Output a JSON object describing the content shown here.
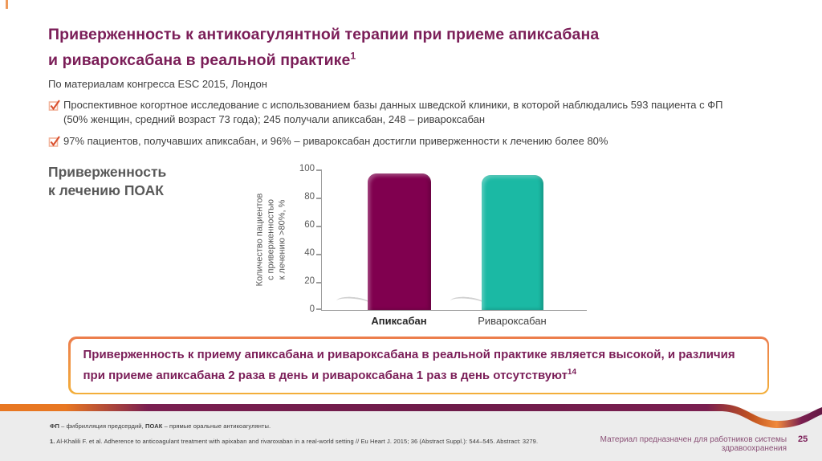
{
  "slide": {
    "title": {
      "regular1": "Приверженность к антикоагулянтной терапии при приеме ",
      "bold1": "апиксабана",
      "line2": "и ривароксабана в реальной практике",
      "sup": "1"
    },
    "subtitle": "По материалам конгресса ESC 2015, Лондон",
    "bullets": [
      {
        "text": "Проспективное когортное исследование с использованием базы данных шведской клиники, в которой наблюдались 593 пациента с ФП (50% женщин, средний возраст 73 года); 245 получали апиксабан, 248 – ривароксабан"
      },
      {
        "text": "97% пациентов, получавших апиксабан, и 96% – ривароксабан достигли приверженности к лечению более 80%"
      }
    ],
    "chart_label": {
      "line1": "Приверженность",
      "line2": "к лечению ПОАК"
    },
    "highlight_box": {
      "part1": "Приверженность к приему ",
      "bold1": "апиксабана",
      "part2": " и ривароксабана в реальной практике является высокой, и различия при приеме ",
      "bold2": "апиксабана",
      "part3": " 2 раза в день и ривароксабана 1 раз в день отсутствуют",
      "sup": "14"
    },
    "footnotes": {
      "abbr_bold1": "ФП",
      "abbr_text1": " – фибрилляция предсердий, ",
      "abbr_bold2": "ПОАК",
      "abbr_text2": " – прямые оральные антикоагулянты.",
      "ref_num": "1.",
      "ref_text": " Al-Khalili F. et al. Adherence to anticoagulant treatment with apixaban and rivaroxaban in a real-world setting // Eu Heart J. 2015; 36 (Abstract Suppl.): 544–545. Abstract: 3279."
    },
    "footer": {
      "disclaimer": "Материал предназначен для работников системы здравоохранения",
      "page_number": "25"
    }
  },
  "chart_data": {
    "type": "bar",
    "title": "Приверженность к лечению ПОАК",
    "categories": [
      "Апиксабан",
      "Ривароксабан"
    ],
    "values": [
      97,
      96
    ],
    "colors": [
      "#80004F",
      "#1BB9A4"
    ],
    "ylabel_lines": [
      "Количество пациентов",
      "с приверженностью",
      "к лечению >80%, %"
    ],
    "yticks": [
      100,
      80,
      60,
      40,
      20,
      0
    ],
    "ylim": [
      0,
      100
    ],
    "grid": false,
    "legend": "none"
  },
  "colors": {
    "brand_magenta": "#7B1E58",
    "accent_orange": "#E87722",
    "bar_apixaban": "#80004F",
    "bar_rivaroxaban": "#1BB9A4",
    "box_border_top": "#EC7D4D",
    "box_border_bottom": "#F3AF3A",
    "footer_bg": "#ECECEC",
    "text_gray": "#404040"
  }
}
